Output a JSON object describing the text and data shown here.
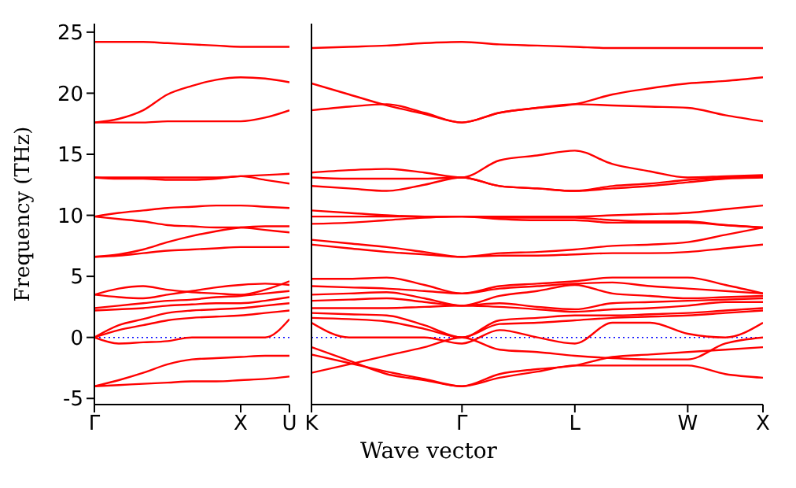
{
  "chart_data": [
    {
      "type": "line",
      "ylabel": "Frequency (THz)",
      "categories": [
        "Γ",
        null,
        null,
        null,
        null,
        null,
        "X",
        null,
        "U"
      ],
      "ylim": [
        -5.5,
        25.7
      ],
      "yticks": [
        -5,
        0,
        5,
        10,
        15,
        20,
        25
      ],
      "marker": "none",
      "line_style": "solid",
      "ref_lines": [
        {
          "axis": "y",
          "value": 0,
          "color": "#0000ff",
          "line_style": "dotted"
        }
      ],
      "series": [
        {
          "color": "#ff0000",
          "values": [
            24.2,
            24.2,
            24.2,
            24.1,
            24.0,
            23.9,
            23.8,
            23.8,
            23.8
          ]
        },
        {
          "color": "#ff0000",
          "values": [
            17.6,
            17.9,
            18.6,
            19.9,
            20.6,
            21.1,
            21.3,
            21.2,
            20.9
          ]
        },
        {
          "color": "#ff0000",
          "values": [
            17.6,
            17.6,
            17.6,
            17.7,
            17.7,
            17.7,
            17.7,
            18.0,
            18.6
          ]
        },
        {
          "color": "#ff0000",
          "values": [
            13.1,
            13.1,
            13.1,
            13.1,
            13.1,
            13.1,
            13.2,
            13.3,
            13.4
          ]
        },
        {
          "color": "#ff0000",
          "values": [
            13.1,
            13.0,
            13.0,
            12.9,
            12.9,
            13.0,
            13.2,
            12.9,
            12.6
          ]
        },
        {
          "color": "#ff0000",
          "values": [
            9.9,
            10.2,
            10.4,
            10.6,
            10.7,
            10.8,
            10.8,
            10.7,
            10.6
          ]
        },
        {
          "color": "#ff0000",
          "values": [
            9.9,
            9.7,
            9.5,
            9.2,
            9.1,
            9.0,
            9.0,
            8.8,
            8.6
          ]
        },
        {
          "color": "#ff0000",
          "values": [
            6.6,
            6.7,
            6.9,
            7.1,
            7.2,
            7.3,
            7.4,
            7.4,
            7.4
          ]
        },
        {
          "color": "#ff0000",
          "values": [
            6.6,
            6.8,
            7.2,
            7.8,
            8.3,
            8.7,
            9.0,
            9.1,
            9.1
          ]
        },
        {
          "color": "#ff0000",
          "values": [
            3.5,
            4.0,
            4.2,
            3.9,
            3.7,
            3.6,
            3.5,
            3.9,
            4.6
          ]
        },
        {
          "color": "#ff0000",
          "values": [
            3.5,
            3.3,
            3.2,
            3.5,
            3.8,
            4.1,
            4.3,
            4.4,
            4.3
          ]
        },
        {
          "color": "#ff0000",
          "values": [
            2.4,
            2.6,
            2.8,
            3.0,
            3.1,
            3.3,
            3.4,
            3.6,
            3.8
          ]
        },
        {
          "color": "#ff0000",
          "values": [
            2.2,
            2.3,
            2.4,
            2.6,
            2.7,
            2.8,
            2.8,
            3.0,
            3.3
          ]
        },
        {
          "color": "#ff0000",
          "values": [
            0,
            1.0,
            1.5,
            2.0,
            2.2,
            2.3,
            2.4,
            2.6,
            2.8
          ]
        },
        {
          "color": "#ff0000",
          "values": [
            0,
            0.6,
            1.0,
            1.4,
            1.6,
            1.7,
            1.8,
            2.0,
            2.2
          ]
        },
        {
          "color": "#ff0000",
          "values": [
            0,
            -0.5,
            -0.4,
            -0.3,
            0,
            0,
            0,
            0,
            1.5
          ]
        },
        {
          "color": "#ff0000",
          "values": [
            -4.0,
            -3.5,
            -2.9,
            -2.2,
            -1.8,
            -1.7,
            -1.6,
            -1.5,
            -1.5
          ]
        },
        {
          "color": "#ff0000",
          "values": [
            -4.0,
            -3.9,
            -3.8,
            -3.7,
            -3.6,
            -3.6,
            -3.5,
            -3.4,
            -3.2
          ]
        }
      ]
    },
    {
      "type": "line",
      "xlabel": "Wave vector",
      "tick_labels": "x",
      "categories": [
        "K",
        null,
        null,
        null,
        "Γ",
        null,
        null,
        "L",
        null,
        null,
        "W",
        null,
        "X"
      ],
      "ylim": [
        -5.5,
        25.7
      ],
      "yticks": [
        -5,
        0,
        5,
        10,
        15,
        20,
        25
      ],
      "marker": "none",
      "line_style": "solid",
      "ref_lines": [
        {
          "axis": "y",
          "value": 0,
          "color": "#0000ff",
          "line_style": "dotted"
        }
      ],
      "series": [
        {
          "color": "#ff0000",
          "values": [
            23.7,
            23.8,
            23.9,
            24.1,
            24.2,
            24.0,
            23.9,
            23.8,
            23.7,
            23.7,
            23.7,
            23.7,
            23.7
          ]
        },
        {
          "color": "#ff0000",
          "values": [
            20.8,
            19.9,
            19.0,
            18.3,
            17.6,
            18.4,
            18.8,
            19.1,
            19.9,
            20.4,
            20.8,
            21.0,
            21.3
          ]
        },
        {
          "color": "#ff0000",
          "values": [
            18.6,
            18.9,
            19.1,
            18.4,
            17.6,
            18.4,
            18.8,
            19.1,
            19.0,
            18.9,
            18.8,
            18.2,
            17.7
          ]
        },
        {
          "color": "#ff0000",
          "values": [
            13.5,
            13.7,
            13.8,
            13.5,
            13.1,
            14.5,
            14.9,
            15.3,
            14.2,
            13.6,
            13.1,
            13.2,
            13.3
          ]
        },
        {
          "color": "#ff0000",
          "values": [
            13.1,
            13.0,
            13.0,
            13.0,
            13.1,
            12.4,
            12.2,
            12.0,
            12.4,
            12.6,
            12.9,
            13.1,
            13.2
          ]
        },
        {
          "color": "#ff0000",
          "values": [
            12.4,
            12.2,
            12.0,
            12.5,
            13.1,
            12.4,
            12.2,
            12.0,
            12.2,
            12.4,
            12.7,
            13.0,
            13.1
          ]
        },
        {
          "color": "#ff0000",
          "values": [
            10.4,
            10.2,
            10.0,
            9.9,
            9.9,
            9.9,
            9.9,
            9.9,
            10.0,
            10.1,
            10.2,
            10.5,
            10.8
          ]
        },
        {
          "color": "#ff0000",
          "values": [
            9.9,
            9.9,
            9.9,
            9.9,
            9.9,
            9.8,
            9.8,
            9.8,
            9.6,
            9.5,
            9.5,
            9.2,
            9.0
          ]
        },
        {
          "color": "#ff0000",
          "values": [
            9.3,
            9.4,
            9.6,
            9.8,
            9.9,
            9.7,
            9.6,
            9.6,
            9.4,
            9.4,
            9.4,
            9.2,
            9.0
          ]
        },
        {
          "color": "#ff0000",
          "values": [
            8.0,
            7.7,
            7.4,
            7.0,
            6.6,
            6.9,
            7.0,
            7.2,
            7.5,
            7.6,
            7.8,
            8.4,
            9.0
          ]
        },
        {
          "color": "#ff0000",
          "values": [
            7.6,
            7.3,
            7.0,
            6.8,
            6.6,
            6.7,
            6.7,
            6.8,
            6.9,
            6.9,
            7.0,
            7.3,
            7.6
          ]
        },
        {
          "color": "#ff0000",
          "values": [
            4.8,
            4.8,
            4.9,
            4.3,
            3.6,
            4.2,
            4.4,
            4.6,
            4.9,
            4.9,
            4.9,
            4.3,
            3.6
          ]
        },
        {
          "color": "#ff0000",
          "values": [
            4.2,
            4.1,
            4.0,
            3.8,
            3.6,
            4.0,
            4.2,
            4.4,
            4.5,
            4.2,
            4.0,
            3.8,
            3.6
          ]
        },
        {
          "color": "#ff0000",
          "values": [
            3.5,
            3.6,
            3.7,
            3.2,
            2.6,
            3.4,
            3.8,
            4.3,
            3.6,
            3.4,
            3.2,
            3.3,
            3.4
          ]
        },
        {
          "color": "#ff0000",
          "values": [
            3.0,
            3.1,
            3.2,
            2.9,
            2.6,
            2.8,
            2.5,
            2.3,
            2.8,
            2.9,
            3.0,
            3.1,
            3.2
          ]
        },
        {
          "color": "#ff0000",
          "values": [
            2.4,
            2.4,
            2.4,
            2.5,
            2.6,
            2.5,
            2.3,
            2.1,
            2.3,
            2.4,
            2.6,
            2.9,
            2.9
          ]
        },
        {
          "color": "#ff0000",
          "values": [
            2.0,
            1.9,
            1.8,
            1.0,
            0,
            1.4,
            1.6,
            1.8,
            1.8,
            1.9,
            2.0,
            2.2,
            2.4
          ]
        },
        {
          "color": "#ff0000",
          "values": [
            1.6,
            1.5,
            1.3,
            0.7,
            0,
            1.1,
            1.2,
            1.4,
            1.6,
            1.7,
            1.8,
            2.0,
            2.2
          ]
        },
        {
          "color": "#ff0000",
          "values": [
            1.2,
            0,
            0,
            0,
            -0.5,
            0.6,
            0,
            -0.5,
            1.2,
            1.2,
            0.3,
            0,
            1.2
          ]
        },
        {
          "color": "#ff0000",
          "values": [
            -2.9,
            -2.2,
            -1.5,
            -0.8,
            0,
            -1.0,
            -1.2,
            -1.5,
            -1.7,
            -1.8,
            -1.8,
            -0.5,
            0
          ]
        },
        {
          "color": "#ff0000",
          "values": [
            -1.4,
            -2.1,
            -2.8,
            -3.4,
            -4.0,
            -3.3,
            -2.8,
            -2.3,
            -2.3,
            -2.3,
            -2.3,
            -3.0,
            -3.3
          ]
        },
        {
          "color": "#ff0000",
          "values": [
            -0.8,
            -1.9,
            -3.0,
            -3.5,
            -4.0,
            -3.0,
            -2.6,
            -2.3,
            -1.6,
            -1.4,
            -1.2,
            -1.0,
            -0.8
          ]
        }
      ]
    }
  ]
}
